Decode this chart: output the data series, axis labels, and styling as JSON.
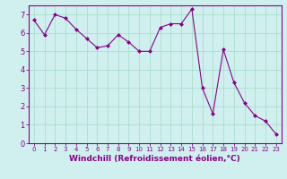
{
  "x": [
    0,
    1,
    2,
    3,
    4,
    5,
    6,
    7,
    8,
    9,
    10,
    11,
    12,
    13,
    14,
    15,
    16,
    17,
    18,
    19,
    20,
    21,
    22,
    23
  ],
  "y": [
    6.7,
    5.9,
    7.0,
    6.8,
    6.2,
    5.7,
    5.2,
    5.3,
    5.9,
    5.5,
    5.0,
    5.0,
    6.3,
    6.5,
    6.5,
    7.3,
    3.0,
    1.6,
    5.1,
    3.3,
    2.2,
    1.5,
    1.2,
    0.5
  ],
  "line_color": "#8B008B",
  "marker": "D",
  "marker_size": 2.0,
  "bg_color": "#cff0ee",
  "grid_color": "#aaddcc",
  "xlabel": "Windchill (Refroidissement éolien,°C)",
  "ylabel": "",
  "title": "",
  "xlim": [
    -0.5,
    23.5
  ],
  "ylim": [
    0,
    7.5
  ],
  "yticks": [
    0,
    1,
    2,
    3,
    4,
    5,
    6,
    7
  ],
  "xticks": [
    0,
    1,
    2,
    3,
    4,
    5,
    6,
    7,
    8,
    9,
    10,
    11,
    12,
    13,
    14,
    15,
    16,
    17,
    18,
    19,
    20,
    21,
    22,
    23
  ],
  "xtick_fontsize": 5.0,
  "ytick_fontsize": 6.0,
  "xlabel_fontsize": 6.5,
  "tick_color": "#8B008B",
  "spine_color": "#8B008B",
  "xlabel_color": "#8B008B"
}
